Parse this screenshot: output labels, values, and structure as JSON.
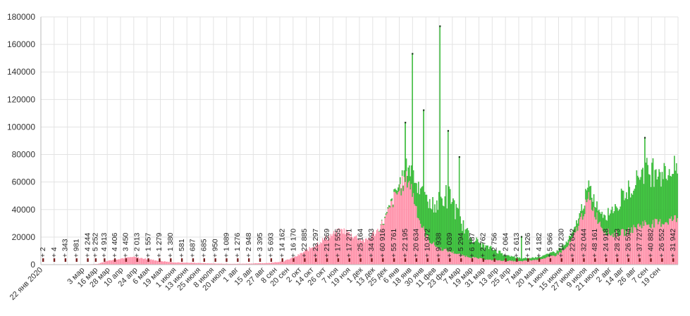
{
  "chart_data": {
    "type": "bar",
    "stacked": true,
    "ylim": [
      0,
      180000
    ],
    "yticks": [
      0,
      20000,
      40000,
      60000,
      80000,
      100000,
      120000,
      140000,
      160000,
      180000
    ],
    "ytick_labels": [
      "0",
      "20000",
      "40000",
      "60000",
      "80000",
      "100000",
      "120000",
      "140000",
      "160000",
      "180000"
    ],
    "grid": true,
    "colors": {
      "base": "#ff8fa8",
      "extra": "#44cc44",
      "extra_edge": "#2e9e2e",
      "grid": "#e3e3e3",
      "marker": "#7a1f1f"
    },
    "n_days": 625,
    "xticks": [
      {
        "day": 0,
        "label": "22 янв 2020"
      },
      {
        "day": 41,
        "label": "3 мар"
      },
      {
        "day": 54,
        "label": "16 мар"
      },
      {
        "day": 66,
        "label": "28 мар"
      },
      {
        "day": 79,
        "label": "10 апр"
      },
      {
        "day": 93,
        "label": "24 апр"
      },
      {
        "day": 105,
        "label": "6 мая"
      },
      {
        "day": 118,
        "label": "19 мая"
      },
      {
        "day": 131,
        "label": "1 июня"
      },
      {
        "day": 143,
        "label": "13 июня"
      },
      {
        "day": 155,
        "label": "25 июня"
      },
      {
        "day": 168,
        "label": "8 июля"
      },
      {
        "day": 180,
        "label": "20 июля"
      },
      {
        "day": 192,
        "label": "1 авг"
      },
      {
        "day": 206,
        "label": "15 авг"
      },
      {
        "day": 218,
        "label": "27 авг"
      },
      {
        "day": 230,
        "label": "8 сен"
      },
      {
        "day": 242,
        "label": "20 сен"
      },
      {
        "day": 254,
        "label": "2 окт"
      },
      {
        "day": 266,
        "label": "14 окт"
      },
      {
        "day": 278,
        "label": "26 окт"
      },
      {
        "day": 290,
        "label": "7 ноя"
      },
      {
        "day": 302,
        "label": "19 ноя"
      },
      {
        "day": 314,
        "label": "1 дек"
      },
      {
        "day": 326,
        "label": "13 дек"
      },
      {
        "day": 338,
        "label": "25 дек"
      },
      {
        "day": 350,
        "label": "6 янв"
      },
      {
        "day": 362,
        "label": "18 янв"
      },
      {
        "day": 374,
        "label": "30 янв"
      },
      {
        "day": 386,
        "label": "11 фев"
      },
      {
        "day": 398,
        "label": "23 фев"
      },
      {
        "day": 410,
        "label": "7 мар"
      },
      {
        "day": 422,
        "label": "19 мар"
      },
      {
        "day": 434,
        "label": "31 мар"
      },
      {
        "day": 447,
        "label": "13 апр"
      },
      {
        "day": 459,
        "label": "25 апр"
      },
      {
        "day": 471,
        "label": "7 мая"
      },
      {
        "day": 484,
        "label": "20 мая"
      },
      {
        "day": 496,
        "label": "1 июня"
      },
      {
        "day": 510,
        "label": "15 июня"
      },
      {
        "day": 522,
        "label": "27 июня"
      },
      {
        "day": 534,
        "label": "9 июля"
      },
      {
        "day": 546,
        "label": "21 июля"
      },
      {
        "day": 558,
        "label": "2 авг"
      },
      {
        "day": 570,
        "label": "14 авг"
      },
      {
        "day": 582,
        "label": "26 авг"
      },
      {
        "day": 594,
        "label": "7 сен"
      },
      {
        "day": 606,
        "label": "19 сен"
      }
    ],
    "annotations": [
      {
        "day": 0,
        "text": "+ 2"
      },
      {
        "day": 14,
        "text": "+ 4"
      },
      {
        "day": 28,
        "text": "+ 343"
      },
      {
        "day": 42,
        "text": "+ 981"
      },
      {
        "day": 56,
        "text": "+ 4 244"
      },
      {
        "day": 66,
        "text": "+ 5 252"
      },
      {
        "day": 77,
        "text": "+ 4 913"
      },
      {
        "day": 90,
        "text": "+ 4 406"
      },
      {
        "day": 104,
        "text": "+ 3 450"
      },
      {
        "day": 118,
        "text": "+ 2 013"
      },
      {
        "day": 132,
        "text": "+ 1 557"
      },
      {
        "day": 146,
        "text": "+ 1 279"
      },
      {
        "day": 160,
        "text": "+ 1 380"
      },
      {
        "day": 174,
        "text": "+ 581"
      },
      {
        "day": 188,
        "text": "+ 687"
      },
      {
        "day": 202,
        "text": "+ 685"
      },
      {
        "day": 216,
        "text": "+ 950"
      },
      {
        "day": 230,
        "text": "+ 1 089"
      },
      {
        "day": 244,
        "text": "+ 1 276"
      },
      {
        "day": 258,
        "text": "+ 2 948"
      },
      {
        "day": 272,
        "text": "+ 3 395"
      },
      {
        "day": 286,
        "text": "+ 5 693"
      },
      {
        "day": 300,
        "text": "+ 14 162"
      },
      {
        "day": 314,
        "text": "+ 16 170"
      },
      {
        "day": 328,
        "text": "+ 22 885"
      },
      {
        "day": 342,
        "text": "+ 23 297"
      },
      {
        "day": 356,
        "text": "+ 21 369"
      },
      {
        "day": 370,
        "text": "+ 17 555"
      },
      {
        "day": 384,
        "text": "+ 17 271"
      },
      {
        "day": 398,
        "text": "+ 25 164"
      },
      {
        "day": 412,
        "text": "+ 34 693"
      },
      {
        "day": 426,
        "text": "+ 60 916"
      },
      {
        "day": 440,
        "text": "+ 55 761"
      },
      {
        "day": 454,
        "text": "+ 22 195"
      },
      {
        "day": 468,
        "text": "+ 20 634"
      },
      {
        "day": 482,
        "text": "+ 10 972"
      },
      {
        "day": 496,
        "text": "+ 9 938"
      },
      {
        "day": 510,
        "text": "+ 6 039"
      },
      {
        "day": 524,
        "text": "+ 5 294"
      },
      {
        "day": 538,
        "text": "+ 6 187"
      },
      {
        "day": 552,
        "text": "+ 2 762"
      },
      {
        "day": 566,
        "text": "+ 2 756"
      },
      {
        "day": 580,
        "text": "+ 2 064"
      },
      {
        "day": 594,
        "text": "+ 2 613"
      },
      {
        "day": 608,
        "text": "+ 1 926"
      },
      {
        "day": 622,
        "text": "+ 4 182"
      },
      {
        "day": 636,
        "text": "+ 5 966"
      },
      {
        "day": 650,
        "text": "+ 10 230"
      },
      {
        "day": 664,
        "text": "+ 22 642"
      },
      {
        "day": 678,
        "text": "+ 32 044"
      },
      {
        "day": 692,
        "text": "+ 48 161"
      },
      {
        "day": 706,
        "text": "+ 24 918"
      },
      {
        "day": 720,
        "text": "+ 28 293"
      },
      {
        "day": 734,
        "text": "+ 26 594"
      },
      {
        "day": 748,
        "text": "+ 37 727"
      },
      {
        "day": 762,
        "text": "+ 40 882"
      },
      {
        "day": 776,
        "text": "+ 26 552"
      },
      {
        "day": 790,
        "text": "+ 31 942"
      }
    ],
    "base_keypoints": [
      [
        0,
        0
      ],
      [
        40,
        50
      ],
      [
        55,
        500
      ],
      [
        66,
        3000
      ],
      [
        78,
        4500
      ],
      [
        90,
        5500
      ],
      [
        100,
        4500
      ],
      [
        115,
        2800
      ],
      [
        130,
        1600
      ],
      [
        150,
        1300
      ],
      [
        170,
        800
      ],
      [
        190,
        600
      ],
      [
        210,
        900
      ],
      [
        225,
        1300
      ],
      [
        238,
        2500
      ],
      [
        250,
        6000
      ],
      [
        262,
        11000
      ],
      [
        274,
        17000
      ],
      [
        286,
        22000
      ],
      [
        296,
        25000
      ],
      [
        306,
        21000
      ],
      [
        318,
        17000
      ],
      [
        330,
        25000
      ],
      [
        338,
        34000
      ],
      [
        346,
        48000
      ],
      [
        354,
        58000
      ],
      [
        360,
        63000
      ],
      [
        365,
        50000
      ],
      [
        372,
        30000
      ],
      [
        380,
        18000
      ],
      [
        390,
        12000
      ],
      [
        400,
        10000
      ],
      [
        412,
        7000
      ],
      [
        425,
        5000
      ],
      [
        440,
        3500
      ],
      [
        455,
        3000
      ],
      [
        470,
        2500
      ],
      [
        484,
        3500
      ],
      [
        495,
        5000
      ],
      [
        505,
        7000
      ],
      [
        515,
        12000
      ],
      [
        522,
        20000
      ],
      [
        530,
        35000
      ],
      [
        537,
        48000
      ],
      [
        545,
        35000
      ],
      [
        552,
        25000
      ],
      [
        560,
        22000
      ],
      [
        575,
        24000
      ],
      [
        590,
        30000
      ],
      [
        605,
        30000
      ],
      [
        624,
        34000
      ]
    ],
    "extra_keypoints": [
      [
        0,
        0
      ],
      [
        330,
        0
      ],
      [
        345,
        1500
      ],
      [
        355,
        5000
      ],
      [
        362,
        12000
      ],
      [
        368,
        20000
      ],
      [
        375,
        25000
      ],
      [
        385,
        28000
      ],
      [
        395,
        38000
      ],
      [
        402,
        40000
      ],
      [
        410,
        25000
      ],
      [
        420,
        15000
      ],
      [
        432,
        10000
      ],
      [
        445,
        7000
      ],
      [
        460,
        3000
      ],
      [
        478,
        1500
      ],
      [
        495,
        2000
      ],
      [
        510,
        3000
      ],
      [
        525,
        4000
      ],
      [
        537,
        8000
      ],
      [
        548,
        8000
      ],
      [
        560,
        18000
      ],
      [
        575,
        28000
      ],
      [
        590,
        40000
      ],
      [
        605,
        38000
      ],
      [
        624,
        34000
      ]
    ],
    "spikes": [
      {
        "day": 357,
        "value": 103000
      },
      {
        "day": 364,
        "value": 153000
      },
      {
        "day": 375,
        "value": 112000
      },
      {
        "day": 391,
        "value": 173000
      },
      {
        "day": 399,
        "value": 97000
      },
      {
        "day": 410,
        "value": 78000
      },
      {
        "day": 471,
        "value": 20000
      },
      {
        "day": 592,
        "value": 92000
      }
    ]
  }
}
